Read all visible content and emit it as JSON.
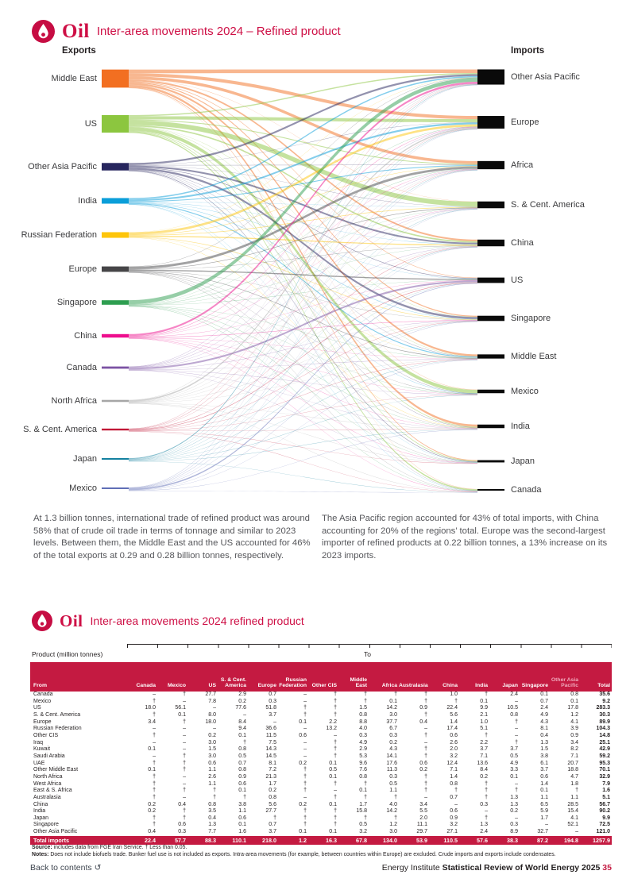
{
  "header": {
    "brand": "Oil",
    "title": "Inter-area movements 2024 – Refined product"
  },
  "sankey": {
    "exports_label": "Exports",
    "imports_label": "Imports",
    "exporters": [
      {
        "name": "Middle East",
        "color": "#F26F21",
        "table_rows": [
          "Iraq",
          "Kuwait",
          "Saudi Arabia",
          "UAE",
          "Other Middle East"
        ]
      },
      {
        "name": "US",
        "color": "#8CC63F",
        "table_rows": [
          "US"
        ]
      },
      {
        "name": "Other Asia Pacific",
        "color": "#27265E",
        "table_rows": [
          "Other Asia Pacific"
        ]
      },
      {
        "name": "India",
        "color": "#0A9ED9",
        "table_rows": [
          "India"
        ]
      },
      {
        "name": "Russian Federation",
        "color": "#FEC50B",
        "table_rows": [
          "Russian Federation"
        ]
      },
      {
        "name": "Europe",
        "color": "#464547",
        "table_rows": [
          "Europe"
        ]
      },
      {
        "name": "Singapore",
        "color": "#2E9E50",
        "table_rows": [
          "Singapore"
        ]
      },
      {
        "name": "China",
        "color": "#EE0D8D",
        "table_rows": [
          "China"
        ]
      },
      {
        "name": "Canada",
        "color": "#7B52A3",
        "table_rows": [
          "Canada"
        ]
      },
      {
        "name": "North Africa",
        "color": "#A6A6A6",
        "table_rows": [
          "North Africa"
        ]
      },
      {
        "name": "S. & Cent. America",
        "color": "#C11737",
        "table_rows": [
          "S. & Cent. America"
        ]
      },
      {
        "name": "Japan",
        "color": "#1481A0",
        "table_rows": [
          "Japan"
        ]
      },
      {
        "name": "Mexico",
        "color": "#5F6EB6",
        "table_rows": [
          "Mexico"
        ]
      }
    ],
    "importers": [
      {
        "name": "Other Asia Pacific",
        "table_columns": [
          "Other Asia Pacific",
          "Australasia"
        ]
      },
      {
        "name": "Europe",
        "table_columns": [
          "Europe"
        ]
      },
      {
        "name": "Africa",
        "table_columns": [
          "Africa"
        ]
      },
      {
        "name": "S. & Cent. America",
        "table_columns": [
          "S. & Cent. America"
        ]
      },
      {
        "name": "China",
        "table_columns": [
          "China"
        ]
      },
      {
        "name": "US",
        "table_columns": [
          "US"
        ]
      },
      {
        "name": "Singapore",
        "table_columns": [
          "Singapore"
        ]
      },
      {
        "name": "Middle East",
        "table_columns": [
          "Middle East"
        ]
      },
      {
        "name": "Mexico",
        "table_columns": [
          "Mexico"
        ]
      },
      {
        "name": "India",
        "table_columns": [
          "India"
        ]
      },
      {
        "name": "Japan",
        "table_columns": [
          "Japan"
        ]
      },
      {
        "name": "Canada",
        "table_columns": [
          "Canada"
        ]
      }
    ],
    "node_color_imports": "#0A0A0A"
  },
  "commentary": {
    "left": "At 1.3 billion tonnes, international trade of refined product was around 58% that of crude oil trade in terms of tonnage and similar to 2023 levels. Between them, the Middle East and the US accounted for 46% of the total exports at 0.29 and 0.28 billion tonnes, respectively.",
    "right": "The Asia Pacific region accounted for 43% of total imports, with China accounting for 20% of the regions’ total. Europe was the second-largest importer of refined products at 0.22 billion tonnes, a 13% increase on its 2023 imports."
  },
  "table_section": {
    "brand": "Oil",
    "title": "Inter-area movements 2024 refined product",
    "product_label": "Product (million tonnes)",
    "to_label": "To",
    "from_label": "From",
    "columns": [
      "Canada",
      "Mexico",
      "US",
      "S. & Cent. America",
      "Europe",
      "Russian Federation",
      "Other CIS",
      "Middle East",
      "Africa",
      "Australasia",
      "China",
      "India",
      "Japan",
      "Singapore",
      "Other Asia Pacific",
      "Total"
    ],
    "rows": [
      {
        "label": "Canada",
        "values": [
          "–",
          "†",
          "27.7",
          "2.9",
          "0.7",
          "–",
          "†",
          "†",
          "†",
          "†",
          "1.0",
          "†",
          "2.4",
          "0.1",
          "0.8",
          "35.6"
        ]
      },
      {
        "label": "Mexico",
        "values": [
          "†",
          "–",
          "7.8",
          "0.2",
          "0.3",
          "–",
          "†",
          "†",
          "0.1",
          "†",
          "†",
          "0.1",
          "–",
          "0.7",
          "0.1",
          "9.2"
        ]
      },
      {
        "label": "US",
        "values": [
          "18.0",
          "56.1",
          "–",
          "77.6",
          "51.8",
          "†",
          "†",
          "1.5",
          "14.2",
          "0.9",
          "22.4",
          "9.9",
          "10.5",
          "2.4",
          "17.8",
          "283.3"
        ]
      },
      {
        "label": "S. & Cent. America",
        "values": [
          "†",
          "0.1",
          "8.0",
          "–",
          "3.7",
          "†",
          "†",
          "0.8",
          "3.0",
          "†",
          "5.6",
          "2.1",
          "0.8",
          "4.9",
          "1.2",
          "30.3"
        ]
      },
      {
        "label": "Europe",
        "values": [
          "3.4",
          "†",
          "18.0",
          "8.4",
          "–",
          "0.1",
          "2.2",
          "8.8",
          "37.7",
          "0.4",
          "1.4",
          "1.0",
          "†",
          "4.3",
          "4.1",
          "89.9"
        ]
      },
      {
        "label": "Russian Federation",
        "values": [
          "–",
          "–",
          "–",
          "9.4",
          "36.6",
          "–",
          "13.2",
          "4.0",
          "6.7",
          "–",
          "17.4",
          "5.1",
          "–",
          "8.1",
          "3.9",
          "104.3"
        ]
      },
      {
        "label": "Other CIS",
        "values": [
          "†",
          "–",
          "0.2",
          "0.1",
          "11.5",
          "0.6",
          "–",
          "0.3",
          "0.3",
          "†",
          "0.6",
          "†",
          "–",
          "0.4",
          "0.9",
          "14.8"
        ]
      },
      {
        "label": "Iraq",
        "values": [
          "–",
          "–",
          "3.0",
          "†",
          "7.5",
          "–",
          "†",
          "4.9",
          "0.2",
          "–",
          "2.6",
          "2.2",
          "†",
          "1.3",
          "3.4",
          "25.1"
        ]
      },
      {
        "label": "Kuwait",
        "values": [
          "0.1",
          "–",
          "1.5",
          "0.8",
          "14.3",
          "–",
          "†",
          "2.9",
          "4.3",
          "†",
          "2.0",
          "3.7",
          "3.7",
          "1.5",
          "8.2",
          "42.9"
        ]
      },
      {
        "label": "Saudi Arabia",
        "values": [
          "–",
          "†",
          "3.0",
          "0.5",
          "14.5",
          "–",
          "†",
          "5.3",
          "14.1",
          "†",
          "3.2",
          "7.1",
          "0.5",
          "3.8",
          "7.1",
          "59.2"
        ]
      },
      {
        "label": "UAE",
        "values": [
          "†",
          "†",
          "0.6",
          "0.7",
          "8.1",
          "0.2",
          "0.1",
          "9.6",
          "17.6",
          "0.6",
          "12.4",
          "13.6",
          "4.9",
          "6.1",
          "20.7",
          "95.3"
        ]
      },
      {
        "label": "Other Middle East",
        "values": [
          "0.1",
          "†",
          "1.1",
          "0.8",
          "7.2",
          "†",
          "0.5",
          "7.6",
          "11.3",
          "0.2",
          "7.1",
          "8.4",
          "3.3",
          "3.7",
          "18.8",
          "70.1"
        ]
      },
      {
        "label": "North Africa",
        "values": [
          "†",
          "–",
          "2.6",
          "0.9",
          "21.3",
          "†",
          "0.1",
          "0.8",
          "0.3",
          "†",
          "1.4",
          "0.2",
          "0.1",
          "0.6",
          "4.7",
          "32.9"
        ]
      },
      {
        "label": "West Africa",
        "values": [
          "†",
          "–",
          "1.1",
          "0.6",
          "1.7",
          "†",
          "†",
          "†",
          "0.5",
          "†",
          "0.8",
          "†",
          "–",
          "1.4",
          "1.8",
          "7.9"
        ]
      },
      {
        "label": "East & S. Africa",
        "values": [
          "†",
          "†",
          "†",
          "0.1",
          "0.2",
          "†",
          "–",
          "0.1",
          "1.1",
          "†",
          "†",
          "†",
          "†",
          "0.1",
          "†",
          "1.6"
        ]
      },
      {
        "label": "Australasia",
        "values": [
          "†",
          "–",
          "†",
          "†",
          "0.8",
          "–",
          "†",
          "†",
          "†",
          "–",
          "0.7",
          "†",
          "1.3",
          "1.1",
          "1.1",
          "5.1"
        ]
      },
      {
        "label": "China",
        "values": [
          "0.2",
          "0.4",
          "0.8",
          "3.8",
          "5.6",
          "0.2",
          "0.1",
          "1.7",
          "4.0",
          "3.4",
          "–",
          "0.3",
          "1.3",
          "6.5",
          "28.5",
          "56.7"
        ]
      },
      {
        "label": "India",
        "values": [
          "0.2",
          "†",
          "3.5",
          "1.1",
          "27.7",
          "†",
          "†",
          "15.8",
          "14.2",
          "5.5",
          "0.6",
          "–",
          "0.2",
          "5.9",
          "15.4",
          "90.2"
        ]
      },
      {
        "label": "Japan",
        "values": [
          "†",
          "†",
          "0.4",
          "0.6",
          "†",
          "†",
          "†",
          "†",
          "†",
          "2.0",
          "0.9",
          "†",
          "–",
          "1.7",
          "4.1",
          "9.9"
        ]
      },
      {
        "label": "Singapore",
        "values": [
          "†",
          "0.6",
          "1.3",
          "0.1",
          "0.7",
          "†",
          "†",
          "0.5",
          "1.2",
          "11.1",
          "3.2",
          "1.3",
          "0.3",
          "–",
          "52.1",
          "72.5"
        ]
      },
      {
        "label": "Other Asia Pacific",
        "values": [
          "0.4",
          "0.3",
          "7.7",
          "1.6",
          "3.7",
          "0.1",
          "0.1",
          "3.2",
          "3.0",
          "29.7",
          "27.1",
          "2.4",
          "8.9",
          "32.7",
          "–",
          "121.0"
        ]
      }
    ],
    "total_row": {
      "label": "Total imports",
      "values": [
        "22.4",
        "57.7",
        "88.3",
        "110.1",
        "218.0",
        "1.2",
        "16.3",
        "67.8",
        "134.0",
        "53.9",
        "110.5",
        "57.6",
        "38.3",
        "87.2",
        "194.8",
        "1257.9"
      ]
    },
    "source_label": "Source:",
    "source_text": " includes data from FGE Iran Service. † Less than 0.05.",
    "notes_label": "Notes:",
    "notes_text": " Does not include biofuels trade. Bunker fuel use is not included as exports. Intra-area movements (for example, between countries within Europe) are excluded. Crude imports and exports include condensates."
  },
  "footer": {
    "back": "Back to contents",
    "back_icon": "↺",
    "publisher": "Energy Institute ",
    "publication": "Statistical Review of World Energy 2025",
    "page": " 35"
  },
  "chart_data": {
    "type": "sankey",
    "title": "Inter-area movements 2024 – Refined product",
    "units": "million tonnes",
    "exporters": [
      {
        "name": "Middle East",
        "total": 292.6
      },
      {
        "name": "US",
        "total": 283.3
      },
      {
        "name": "Other Asia Pacific",
        "total": 121.0
      },
      {
        "name": "India",
        "total": 90.2
      },
      {
        "name": "Russian Federation",
        "total": 104.3
      },
      {
        "name": "Europe",
        "total": 89.9
      },
      {
        "name": "Singapore",
        "total": 72.5
      },
      {
        "name": "China",
        "total": 56.7
      },
      {
        "name": "Canada",
        "total": 35.6
      },
      {
        "name": "North Africa",
        "total": 32.9
      },
      {
        "name": "S. & Cent. America",
        "total": 30.3
      },
      {
        "name": "Japan",
        "total": 9.9
      },
      {
        "name": "Mexico",
        "total": 9.2
      }
    ],
    "importers": [
      {
        "name": "Other Asia Pacific",
        "total": 194.8
      },
      {
        "name": "Europe",
        "total": 218.0
      },
      {
        "name": "Africa",
        "total": 134.0
      },
      {
        "name": "S. & Cent. America",
        "total": 110.1
      },
      {
        "name": "China",
        "total": 110.5
      },
      {
        "name": "US",
        "total": 88.3
      },
      {
        "name": "Singapore",
        "total": 87.2
      },
      {
        "name": "Middle East",
        "total": 67.8
      },
      {
        "name": "Mexico",
        "total": 57.7
      },
      {
        "name": "India",
        "total": 57.6
      },
      {
        "name": "Japan",
        "total": 38.3
      },
      {
        "name": "Canada",
        "total": 22.4
      }
    ],
    "grand_total": 1257.9,
    "flows_source": "from-to matrix given in table_section.rows (columns = destinations; † means less than 0.05)"
  }
}
